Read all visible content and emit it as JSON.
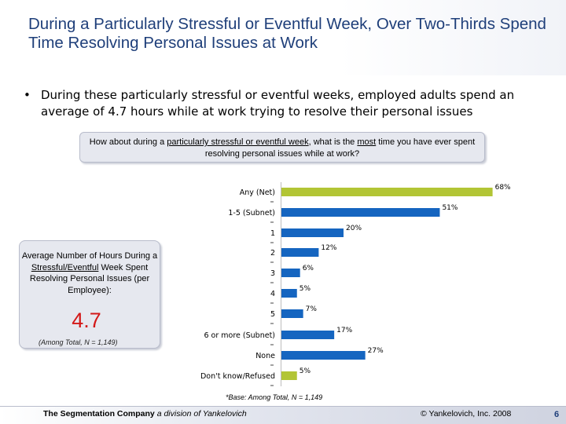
{
  "slide": {
    "title": "During a Particularly Stressful or Eventful Week, Over Two-Thirds Spend Time Resolving Personal Issues at Work",
    "bullet": "During these particularly stressful or eventful weeks, employed adults spend an average of 4.7 hours while at work trying to resolve their personal issues",
    "bullet_marker": "•"
  },
  "question": {
    "before": "How about during a ",
    "underlined1": "particularly stressful or eventful week",
    "middle": ", what is the ",
    "underlined2": "most",
    "after": " time you have ever spent resolving personal issues while at work?"
  },
  "average_box": {
    "label_line1": "Average Number of Hours During a ",
    "label_underlined": "Stressful/Eventful",
    "label_line2": " Week Spent Resolving Personal Issues (per Employee):",
    "value": "4.7",
    "base": "(Among Total, N = 1,149)"
  },
  "chart_data": {
    "type": "bar",
    "orientation": "horizontal",
    "categories": [
      "Any (Net)",
      "1-5 (Subnet)",
      "1",
      "2",
      "3",
      "4",
      "5",
      "6 or more (Subnet)",
      "None",
      "Don't know/Refused"
    ],
    "values": [
      68,
      51,
      20,
      12,
      6,
      5,
      7,
      17,
      27,
      5
    ],
    "value_labels": [
      "68%",
      "51%",
      "20%",
      "12%",
      "6%",
      "5%",
      "7%",
      "17%",
      "27%",
      "5%"
    ],
    "colors": [
      "#b2c535",
      "#1565c0",
      "#1565c0",
      "#1565c0",
      "#1565c0",
      "#1565c0",
      "#1565c0",
      "#1565c0",
      "#1565c0",
      "#b2c535"
    ],
    "xlim": [
      0,
      70
    ],
    "grid": false,
    "base_note": "*Base: Among Total, N = 1,149"
  },
  "footer": {
    "company": "The Segmentation Company",
    "division": "a division of Yankelovich",
    "copyright": "© Yankelovich, Inc. 2008",
    "page": "6"
  }
}
